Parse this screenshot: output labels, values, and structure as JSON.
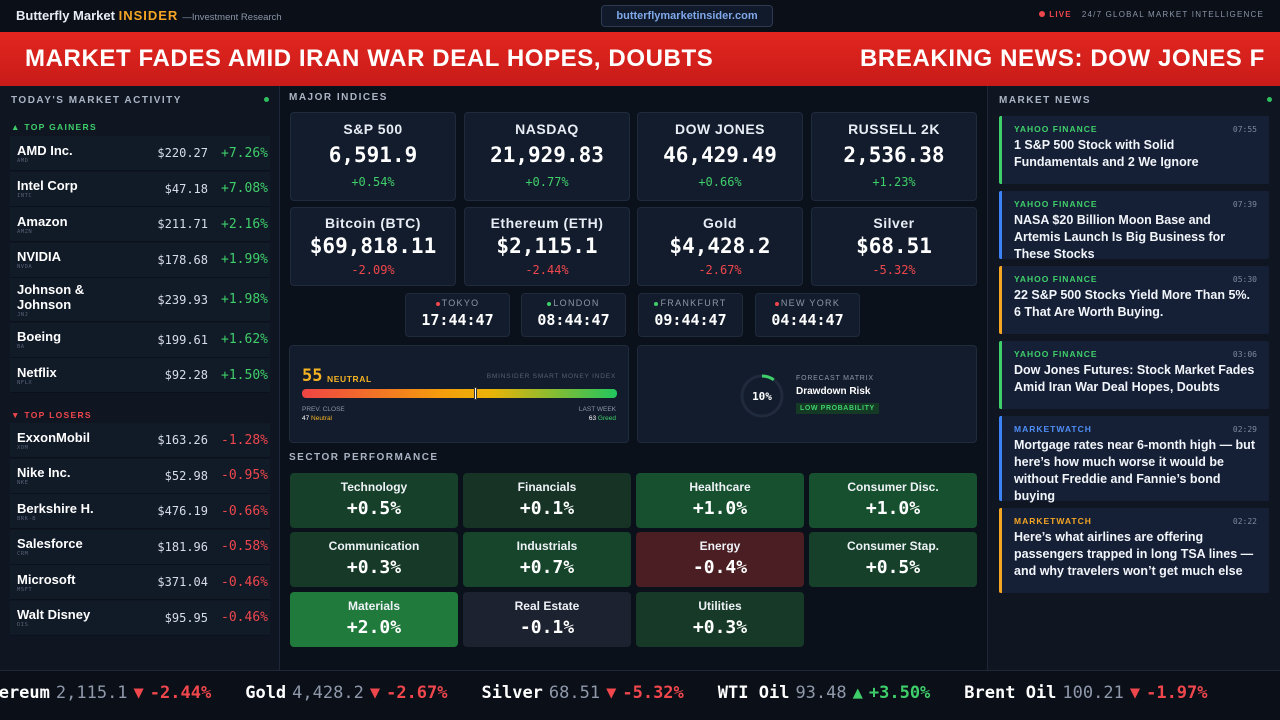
{
  "header": {
    "brand": "Butterfly Market",
    "brand_accent": "INSIDER",
    "tagline": "—Investment Research",
    "url": "butterflymarketinsider.com",
    "live": "LIVE",
    "tagline2": "24/7 GLOBAL MARKET INTELLIGENCE"
  },
  "banner": {
    "headlines": [
      "MARKET FADES AMID IRAN WAR DEAL HOPES, DOUBTS",
      "BREAKING NEWS: DOW JONES F"
    ]
  },
  "left": {
    "title": "TODAY'S MARKET ACTIVITY",
    "gainers_label": "▲ TOP GAINERS",
    "gainers_color": "#3fcf6a",
    "gainers": [
      {
        "name": "AMD Inc.",
        "ticker": "AMD",
        "price": "$220.27",
        "change": "+7.26%"
      },
      {
        "name": "Intel Corp",
        "ticker": "INTC",
        "price": "$47.18",
        "change": "+7.08%"
      },
      {
        "name": "Amazon",
        "ticker": "AMZN",
        "price": "$211.71",
        "change": "+2.16%"
      },
      {
        "name": "NVIDIA",
        "ticker": "NVDA",
        "price": "$178.68",
        "change": "+1.99%"
      },
      {
        "name": "Johnson & Johnson",
        "ticker": "JNJ",
        "price": "$239.93",
        "change": "+1.98%"
      },
      {
        "name": "Boeing",
        "ticker": "BA",
        "price": "$199.61",
        "change": "+1.62%"
      },
      {
        "name": "Netflix",
        "ticker": "NFLX",
        "price": "$92.28",
        "change": "+1.50%"
      }
    ],
    "losers_label": "▼ TOP LOSERS",
    "losers_color": "#f0474d",
    "losers": [
      {
        "name": "ExxonMobil",
        "ticker": "XOM",
        "price": "$163.26",
        "change": "-1.28%"
      },
      {
        "name": "Nike Inc.",
        "ticker": "NKE",
        "price": "$52.98",
        "change": "-0.95%"
      },
      {
        "name": "Berkshire H.",
        "ticker": "BRK-B",
        "price": "$476.19",
        "change": "-0.66%"
      },
      {
        "name": "Salesforce",
        "ticker": "CRM",
        "price": "$181.96",
        "change": "-0.58%"
      },
      {
        "name": "Microsoft",
        "ticker": "MSFT",
        "price": "$371.04",
        "change": "-0.46%"
      },
      {
        "name": "Walt Disney",
        "ticker": "DIS",
        "price": "$95.95",
        "change": "-0.46%"
      }
    ]
  },
  "center": {
    "indices_title": "MAJOR INDICES",
    "indices": [
      {
        "name": "S&P 500",
        "value": "6,591.9",
        "change": "+0.54%",
        "color": "#3fcf6a"
      },
      {
        "name": "NASDAQ",
        "value": "21,929.83",
        "change": "+0.77%",
        "color": "#3fcf6a"
      },
      {
        "name": "DOW JONES",
        "value": "46,429.49",
        "change": "+0.66%",
        "color": "#3fcf6a"
      },
      {
        "name": "RUSSELL 2K",
        "value": "2,536.38",
        "change": "+1.23%",
        "color": "#3fcf6a"
      },
      {
        "name": "Bitcoin (BTC)",
        "value": "$69,818.11",
        "change": "-2.09%",
        "color": "#f0474d"
      },
      {
        "name": "Ethereum (ETH)",
        "value": "$2,115.1",
        "change": "-2.44%",
        "color": "#f0474d"
      },
      {
        "name": "Gold",
        "value": "$4,428.2",
        "change": "-2.67%",
        "color": "#f0474d"
      },
      {
        "name": "Silver",
        "value": "$68.51",
        "change": "-5.32%",
        "color": "#f0474d"
      }
    ],
    "clocks": [
      {
        "city": "TOKYO",
        "time": "17:44:47",
        "color": "#f0474d"
      },
      {
        "city": "LONDON",
        "time": "08:44:47",
        "color": "#3fcf6a"
      },
      {
        "city": "FRANKFURT",
        "time": "09:44:47",
        "color": "#3fcf6a"
      },
      {
        "city": "NEW YORK",
        "time": "04:44:47",
        "color": "#f0474d"
      }
    ],
    "sentiment": {
      "score": 55,
      "label": "NEUTRAL",
      "index_name": "BMINSIDER SMART MONEY INDEX",
      "prev_label": "PREV. CLOSE",
      "prev_value": "47",
      "prev_text": "Neutral",
      "week_label": "LAST WEEK",
      "week_value": "63",
      "week_text": "Greed"
    },
    "forecast": {
      "value": 10,
      "value_label": "10%",
      "kicker": "FORECAST MATRIX",
      "title": "Drawdown Risk",
      "badge": "LOW PROBABILITY"
    },
    "sectors_title": "SECTOR PERFORMANCE",
    "sectors": [
      {
        "name": "Technology",
        "change": "+0.5%",
        "color": "#16402a"
      },
      {
        "name": "Financials",
        "change": "+0.1%",
        "color": "#163325"
      },
      {
        "name": "Healthcare",
        "change": "+1.0%",
        "color": "#17502f"
      },
      {
        "name": "Consumer Disc.",
        "change": "+1.0%",
        "color": "#17502f"
      },
      {
        "name": "Communication",
        "change": "+0.3%",
        "color": "#163a27"
      },
      {
        "name": "Industrials",
        "change": "+0.7%",
        "color": "#16452b"
      },
      {
        "name": "Energy",
        "change": "-0.4%",
        "color": "#4a1e22"
      },
      {
        "name": "Consumer Stap.",
        "change": "+0.5%",
        "color": "#16402a"
      },
      {
        "name": "Materials",
        "change": "+2.0%",
        "color": "#1f7a3c"
      },
      {
        "name": "Real Estate",
        "change": "-0.1%",
        "color": "#1c2230"
      },
      {
        "name": "Utilities",
        "change": "+0.3%",
        "color": "#163a27"
      }
    ]
  },
  "news": {
    "title": "MARKET NEWS",
    "items": [
      {
        "source": "YAHOO FINANCE",
        "time": "07:55",
        "headline": "1 S&P 500 Stock with Solid Fundamentals and 2 We Ignore",
        "color": "#3fcf6a",
        "source_color": "#3fcf6a"
      },
      {
        "source": "YAHOO FINANCE",
        "time": "07:39",
        "headline": "NASA $20 Billion Moon Base and Artemis Launch Is Big Business for These Stocks",
        "color": "#3b82f6",
        "source_color": "#3fcf6a"
      },
      {
        "source": "YAHOO FINANCE",
        "time": "05:30",
        "headline": "22 S&P 500 Stocks Yield More Than 5%. 6 That Are Worth Buying.",
        "color": "#f5a524",
        "source_color": "#3fcf6a"
      },
      {
        "source": "YAHOO FINANCE",
        "time": "03:06",
        "headline": "Dow Jones Futures: Stock Market Fades Amid Iran War Deal Hopes, Doubts",
        "color": "#3fcf6a",
        "source_color": "#3fcf6a"
      },
      {
        "source": "MARKETWATCH",
        "time": "02:29",
        "headline": "Mortgage rates near 6-month high — but here’s how much worse it would be without Freddie and Fannie’s bond buying",
        "color": "#3b82f6",
        "source_color": "#4f8ef7"
      },
      {
        "source": "MARKETWATCH",
        "time": "02:22",
        "headline": "Here’s what airlines are offering passengers trapped in long TSA lines — and why travelers won’t get much else",
        "color": "#f5a524",
        "source_color": "#f5a524"
      }
    ]
  },
  "ticker": [
    {
      "name": "Ethereum",
      "price": "2,115.1",
      "arrow": "▼",
      "change": "-2.44%",
      "color": "#f0474d"
    },
    {
      "name": "Gold",
      "price": "4,428.2",
      "arrow": "▼",
      "change": "-2.67%",
      "color": "#f0474d"
    },
    {
      "name": "Silver",
      "price": "68.51",
      "arrow": "▼",
      "change": "-5.32%",
      "color": "#f0474d"
    },
    {
      "name": "WTI Oil",
      "price": "93.48",
      "arrow": "▲",
      "change": "+3.50%",
      "color": "#3fcf6a"
    },
    {
      "name": "Brent Oil",
      "price": "100.21",
      "arrow": "▼",
      "change": "-1.97%",
      "color": "#f0474d"
    }
  ]
}
